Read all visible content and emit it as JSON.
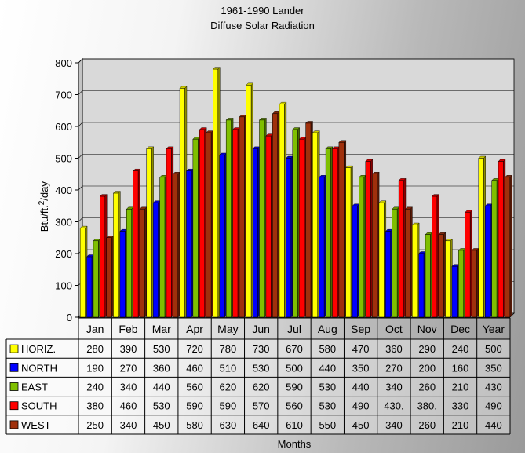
{
  "chart_data": {
    "type": "bar",
    "title": "1961-1990 Lander",
    "subtitle": "Diffuse Solar Radiation",
    "xlabel": "Months",
    "ylabel": "Btu/ft. 2 /day",
    "ylabel_parts": {
      "pre": "Btu/ft.",
      "sup": "2",
      "post": "/day"
    },
    "ylim": [
      0,
      800
    ],
    "yticks": [
      0,
      100,
      200,
      300,
      400,
      500,
      600,
      700,
      800
    ],
    "grid": true,
    "categories": [
      "Jan",
      "Feb",
      "Mar",
      "Apr",
      "May",
      "Jun",
      "Jul",
      "Aug",
      "Sep",
      "Oct",
      "Nov",
      "Dec",
      "Year"
    ],
    "series": [
      {
        "name": "HORIZ.",
        "color": "#ffff00",
        "values": [
          280,
          390,
          530,
          720,
          780,
          730,
          670,
          580,
          470,
          360,
          290,
          240,
          500
        ]
      },
      {
        "name": "NORTH",
        "color": "#0000ff",
        "values": [
          190,
          270,
          360,
          460,
          510,
          530,
          500,
          440,
          350,
          270,
          200,
          160,
          350
        ]
      },
      {
        "name": "EAST",
        "color": "#7fbf00",
        "values": [
          240,
          340,
          440,
          560,
          620,
          620,
          590,
          530,
          440,
          340,
          260,
          210,
          430
        ]
      },
      {
        "name": "SOUTH",
        "color": "#ff0000",
        "values": [
          380,
          460,
          530,
          590,
          590,
          570,
          560,
          530,
          490,
          430,
          380,
          330,
          490
        ]
      },
      {
        "name": "WEST",
        "color": "#a0300c",
        "values": [
          250,
          340,
          450,
          580,
          630,
          640,
          610,
          550,
          450,
          340,
          260,
          210,
          440
        ]
      }
    ],
    "table_cells": [
      [
        "280",
        "390",
        "530",
        "720",
        "780",
        "730",
        "670",
        "580",
        "470",
        "360",
        "290",
        "240",
        "500"
      ],
      [
        "190",
        "270",
        "360",
        "460",
        "510",
        "530",
        "500",
        "440",
        "350",
        "270",
        "200",
        "160",
        "350"
      ],
      [
        "240",
        "340",
        "440",
        "560",
        "620",
        "620",
        "590",
        "530",
        "440",
        "340",
        "260",
        "210",
        "430"
      ],
      [
        "380",
        "460",
        "530",
        "590",
        "590",
        "570",
        "560",
        "530",
        "490",
        "430.",
        "380.",
        "330",
        "490"
      ],
      [
        "250",
        "340",
        "450",
        "580",
        "630",
        "640",
        "610",
        "550",
        "450",
        "340",
        "260",
        "210",
        "440"
      ]
    ]
  }
}
